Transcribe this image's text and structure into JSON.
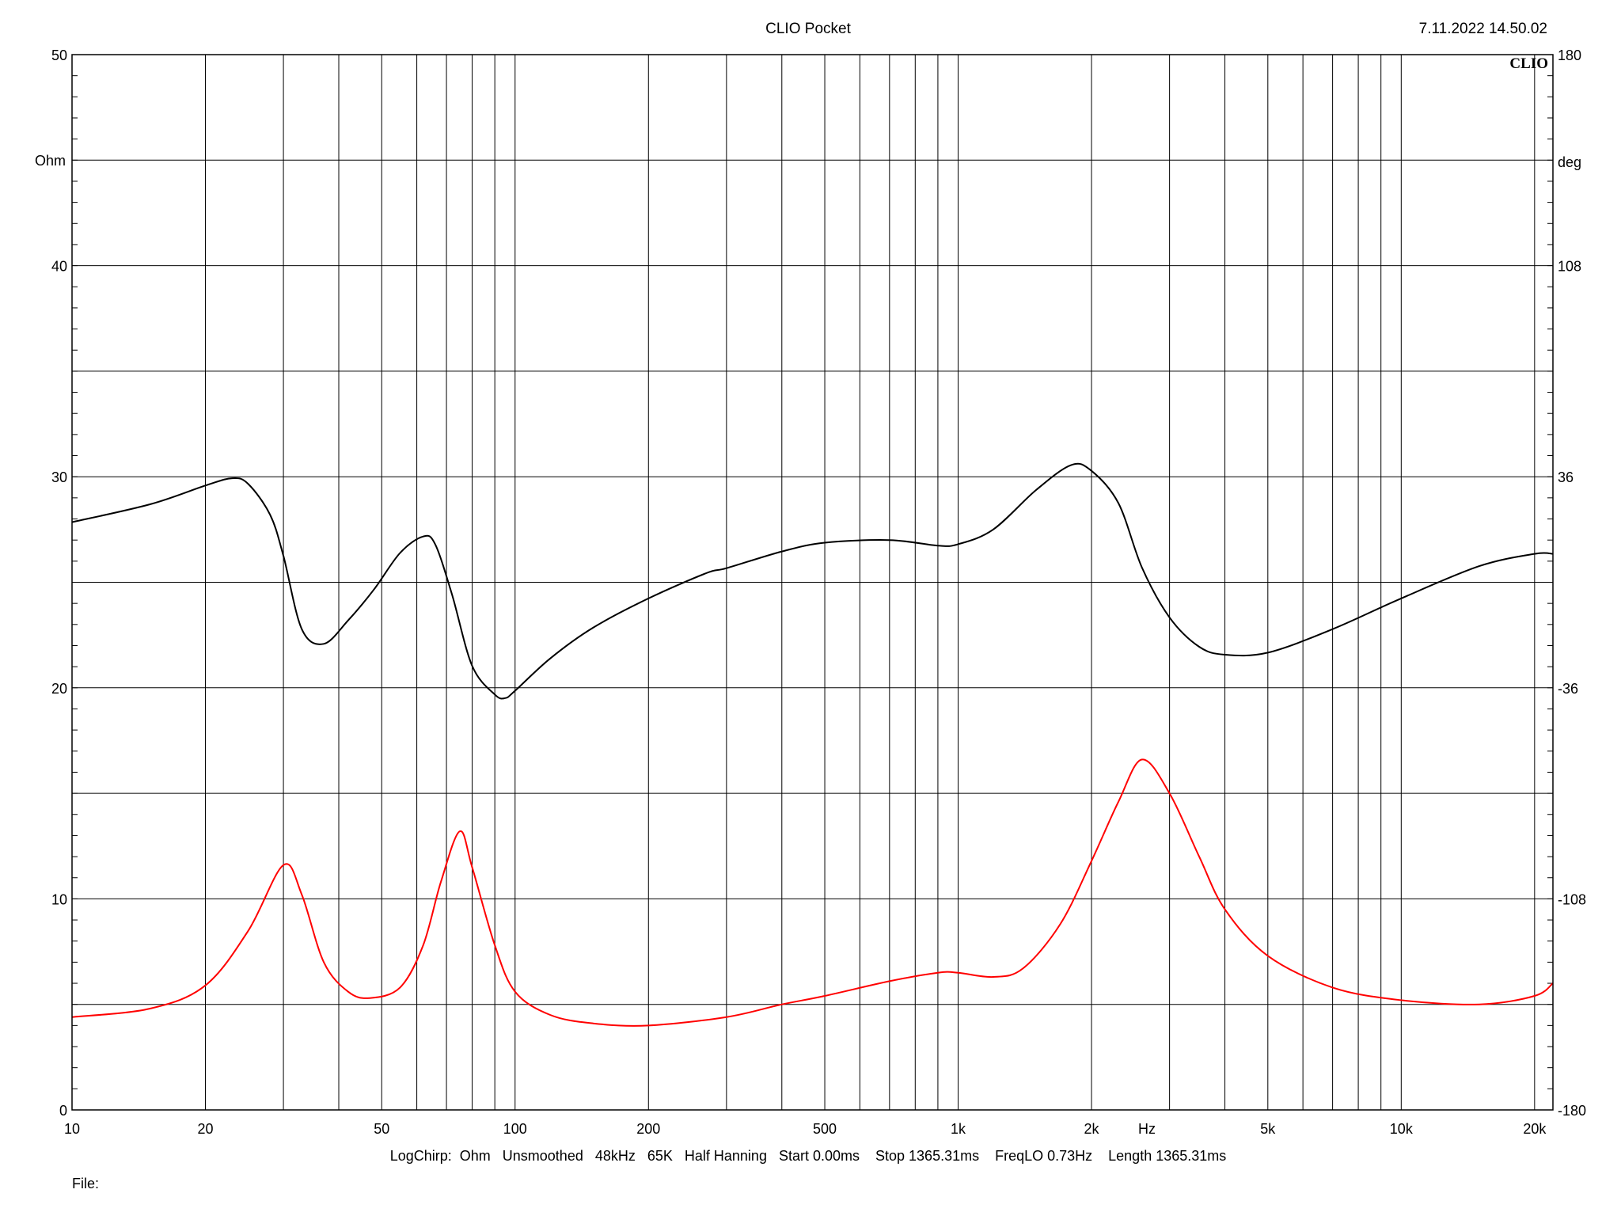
{
  "header": {
    "title": "CLIO Pocket",
    "timestamp": "7.11.2022 14.50.02",
    "logo": "CLIO"
  },
  "footer": {
    "settings": "LogChirp:  Ohm   Unsmoothed   48kHz   65K   Half Hanning   Start 0.00ms    Stop 1365.31ms    FreqLO 0.73Hz    Length 1365.31ms",
    "file_label": "File:"
  },
  "colors": {
    "phase": "#000000",
    "impedance": "#ff0000",
    "grid": "#000000"
  },
  "chart_data": {
    "type": "line",
    "x_scale": "log",
    "xlim": [
      10,
      22000
    ],
    "x_ticks": [
      {
        "value": 10,
        "label": "10"
      },
      {
        "value": 20,
        "label": "20"
      },
      {
        "value": 50,
        "label": "50"
      },
      {
        "value": 100,
        "label": "100"
      },
      {
        "value": 200,
        "label": "200"
      },
      {
        "value": 500,
        "label": "500"
      },
      {
        "value": 1000,
        "label": "1k"
      },
      {
        "value": 2000,
        "label": "2k"
      },
      {
        "value": 5000,
        "label": "5k"
      },
      {
        "value": 10000,
        "label": "10k"
      },
      {
        "value": 20000,
        "label": "20k"
      }
    ],
    "x_unit": "Hz",
    "x_gridlines": [
      10,
      20,
      30,
      40,
      50,
      60,
      70,
      80,
      90,
      100,
      200,
      300,
      400,
      500,
      600,
      700,
      800,
      900,
      1000,
      2000,
      3000,
      4000,
      5000,
      6000,
      7000,
      8000,
      9000,
      10000,
      20000
    ],
    "ylim_left": [
      0,
      50
    ],
    "y_left_ticks": [
      0,
      10,
      20,
      30,
      40,
      50
    ],
    "y_left_unit": "Ohm",
    "ylim_right": [
      -180,
      180
    ],
    "y_right_ticks": [
      -180,
      -108,
      -36,
      36,
      108,
      180
    ],
    "y_right_unit": "deg",
    "grid": true,
    "series": [
      {
        "axis": "left",
        "color": "#ff0000",
        "points": [
          [
            10,
            4.4
          ],
          [
            15,
            4.8
          ],
          [
            20,
            5.9
          ],
          [
            25,
            8.5
          ],
          [
            30,
            11.6
          ],
          [
            33,
            10.2
          ],
          [
            37,
            7.0
          ],
          [
            42,
            5.6
          ],
          [
            47,
            5.3
          ],
          [
            55,
            5.8
          ],
          [
            62,
            7.8
          ],
          [
            68,
            10.8
          ],
          [
            75,
            13.2
          ],
          [
            80,
            11.5
          ],
          [
            90,
            7.8
          ],
          [
            100,
            5.6
          ],
          [
            120,
            4.5
          ],
          [
            150,
            4.1
          ],
          [
            200,
            4.0
          ],
          [
            300,
            4.4
          ],
          [
            400,
            5.0
          ],
          [
            500,
            5.4
          ],
          [
            700,
            6.1
          ],
          [
            900,
            6.5
          ],
          [
            1000,
            6.5
          ],
          [
            1200,
            6.3
          ],
          [
            1400,
            6.7
          ],
          [
            1700,
            8.8
          ],
          [
            2000,
            11.8
          ],
          [
            2300,
            14.6
          ],
          [
            2600,
            16.6
          ],
          [
            3000,
            15.0
          ],
          [
            3500,
            12.0
          ],
          [
            4000,
            9.5
          ],
          [
            5000,
            7.3
          ],
          [
            7000,
            5.8
          ],
          [
            10000,
            5.2
          ],
          [
            15000,
            5.0
          ],
          [
            20000,
            5.4
          ],
          [
            22000,
            6.0
          ]
        ]
      },
      {
        "axis": "right",
        "color": "#000000",
        "points": [
          [
            10,
            20.5
          ],
          [
            15,
            26.6
          ],
          [
            20,
            33
          ],
          [
            23,
            35.5
          ],
          [
            25,
            33.5
          ],
          [
            28,
            23
          ],
          [
            30,
            9
          ],
          [
            33,
            -16
          ],
          [
            37,
            -21
          ],
          [
            42,
            -13
          ],
          [
            48,
            -2.5
          ],
          [
            55,
            10
          ],
          [
            62,
            15.6
          ],
          [
            66,
            13
          ],
          [
            72,
            -4
          ],
          [
            80,
            -28.5
          ],
          [
            90,
            -38.3
          ],
          [
            95,
            -39.5
          ],
          [
            100,
            -37
          ],
          [
            120,
            -26
          ],
          [
            150,
            -15.5
          ],
          [
            200,
            -5.5
          ],
          [
            270,
            3.1
          ],
          [
            300,
            4.8
          ],
          [
            400,
            10.5
          ],
          [
            500,
            13.5
          ],
          [
            700,
            14.4
          ],
          [
            900,
            12.5
          ],
          [
            1000,
            13
          ],
          [
            1200,
            18
          ],
          [
            1500,
            31.5
          ],
          [
            1800,
            40
          ],
          [
            2000,
            38
          ],
          [
            2300,
            27
          ],
          [
            2600,
            5
          ],
          [
            3000,
            -12
          ],
          [
            3500,
            -22
          ],
          [
            4000,
            -24.7
          ],
          [
            5000,
            -24
          ],
          [
            7000,
            -16
          ],
          [
            10000,
            -5.5
          ],
          [
            15000,
            5.5
          ],
          [
            20000,
            9.7
          ],
          [
            22000,
            9.7
          ]
        ]
      }
    ]
  }
}
